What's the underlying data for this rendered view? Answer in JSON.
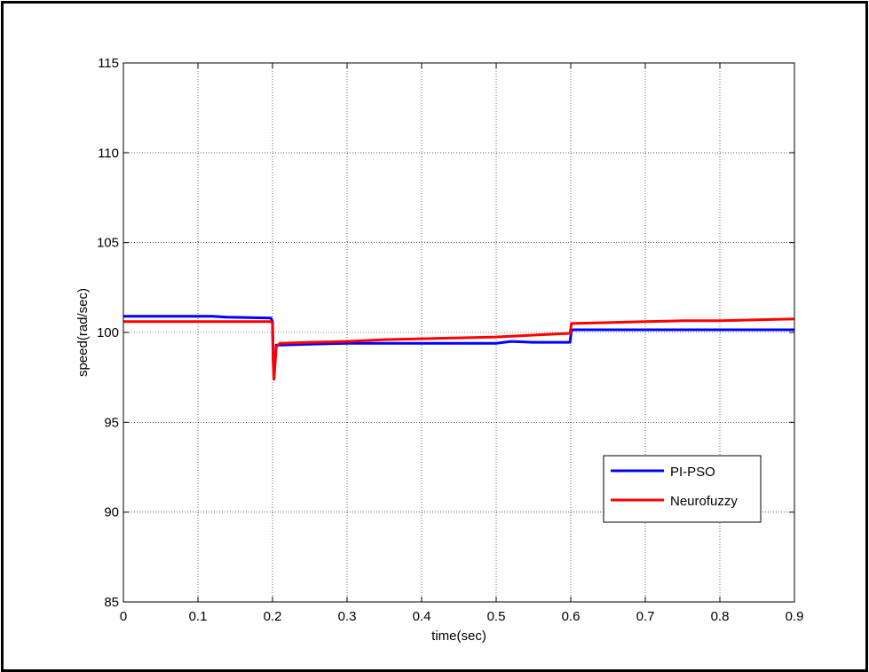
{
  "chart_data": {
    "type": "line",
    "title": "",
    "xlabel": "time(sec)",
    "ylabel": "speed(rad/sec)",
    "xlim": [
      0,
      0.9
    ],
    "ylim": [
      85,
      115
    ],
    "xticks": [
      0,
      0.1,
      0.2,
      0.3,
      0.4,
      0.5,
      0.6,
      0.7,
      0.8,
      0.9
    ],
    "xtick_labels": [
      "0",
      "0.1",
      "0.2",
      "0.3",
      "0.4",
      "0.5",
      "0.6",
      "0.7",
      "0.8",
      "0.9"
    ],
    "yticks": [
      85,
      90,
      95,
      100,
      105,
      110,
      115
    ],
    "ytick_labels": [
      "85",
      "90",
      "95",
      "100",
      "105",
      "110",
      "115"
    ],
    "grid": true,
    "legend_position": "lower-right",
    "series": [
      {
        "name": "PI-PSO",
        "color": "#0000ff",
        "x": [
          0,
          0.1,
          0.12,
          0.14,
          0.198,
          0.2,
          0.201,
          0.202,
          0.203,
          0.205,
          0.21,
          0.25,
          0.3,
          0.4,
          0.5,
          0.52,
          0.55,
          0.58,
          0.599,
          0.601,
          0.7,
          0.8,
          0.9
        ],
        "y": [
          100.9,
          100.9,
          100.9,
          100.85,
          100.8,
          100.6,
          98.5,
          97.6,
          98.3,
          99.3,
          99.3,
          99.35,
          99.4,
          99.4,
          99.4,
          99.5,
          99.45,
          99.45,
          99.45,
          100.15,
          100.15,
          100.15,
          100.15
        ]
      },
      {
        "name": "Neurofuzzy",
        "color": "#ff0000",
        "x": [
          0,
          0.1,
          0.198,
          0.2,
          0.201,
          0.202,
          0.203,
          0.205,
          0.21,
          0.25,
          0.3,
          0.35,
          0.4,
          0.45,
          0.5,
          0.55,
          0.599,
          0.601,
          0.65,
          0.7,
          0.75,
          0.8,
          0.85,
          0.9
        ],
        "y": [
          100.6,
          100.6,
          100.6,
          100.5,
          98.2,
          97.4,
          98.0,
          99.2,
          99.4,
          99.45,
          99.5,
          99.6,
          99.65,
          99.7,
          99.75,
          99.85,
          99.95,
          100.5,
          100.55,
          100.6,
          100.65,
          100.65,
          100.7,
          100.75
        ]
      }
    ]
  }
}
